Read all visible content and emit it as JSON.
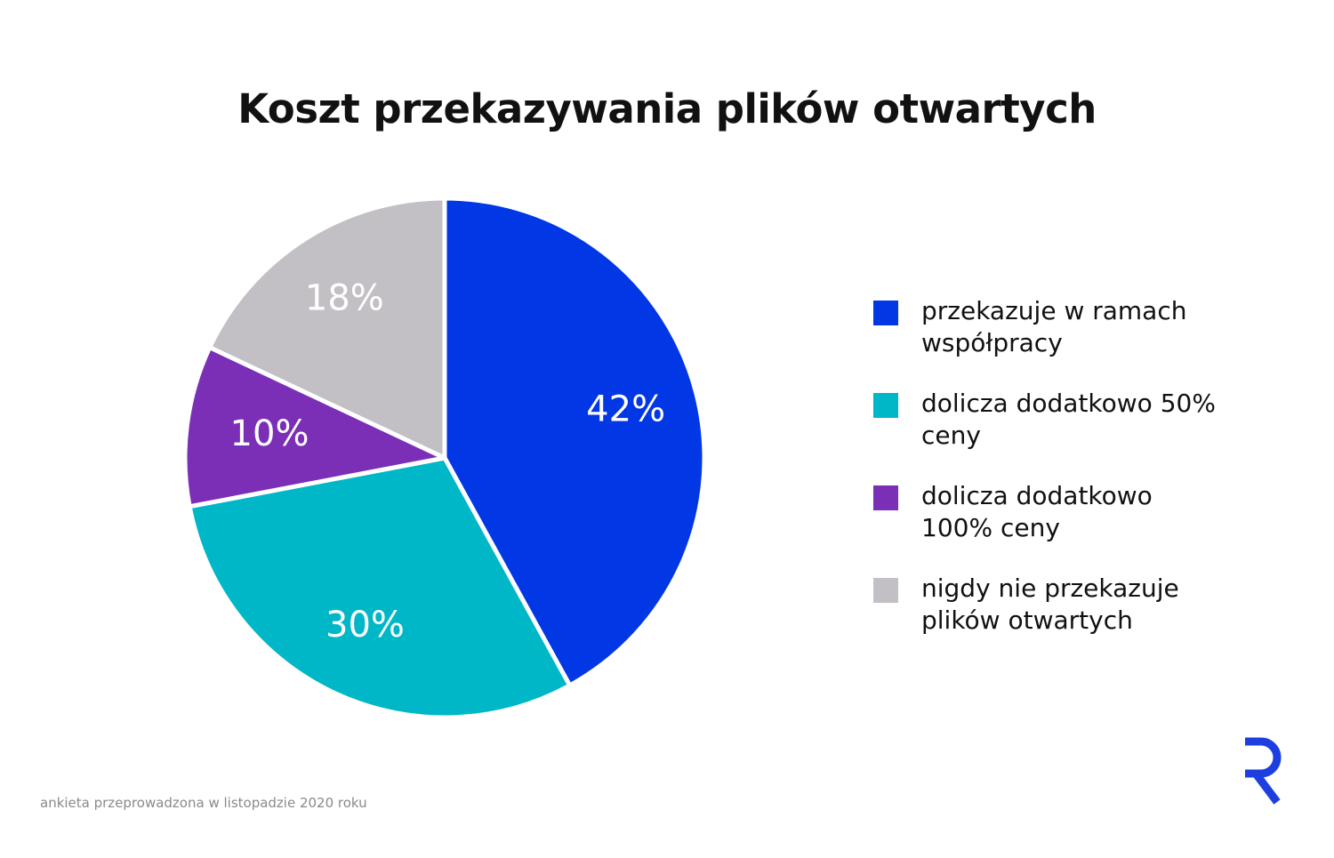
{
  "title": "Koszt przekazywania plików otwartych",
  "footnote": "ankieta przeprowadzona w listopadzie 2020 roku",
  "logo_icon": "r-logo-icon",
  "colors": {
    "blue": "#0237E6",
    "teal": "#00B7C8",
    "purple": "#7B2FB6",
    "gray": "#C2C0C5",
    "logo": "#1E3FE0"
  },
  "chart_data": {
    "type": "pie",
    "title": "Koszt przekazywania plików otwartych",
    "slices": [
      {
        "name": "przekazuje w ramach współpracy",
        "value": 42,
        "label": "42%",
        "color": "#0237E6"
      },
      {
        "name": "dolicza dodatkowo 50% ceny",
        "value": 30,
        "label": "30%",
        "color": "#00B7C8"
      },
      {
        "name": "dolicza dodatkowo 100% ceny",
        "value": 10,
        "label": "10%",
        "color": "#7B2FB6"
      },
      {
        "name": "nigdy nie przekazuje plików otwartych",
        "value": 18,
        "label": "18%",
        "color": "#C2C0C5"
      }
    ],
    "start": "top",
    "direction": "clockwise",
    "legend_position": "right"
  }
}
